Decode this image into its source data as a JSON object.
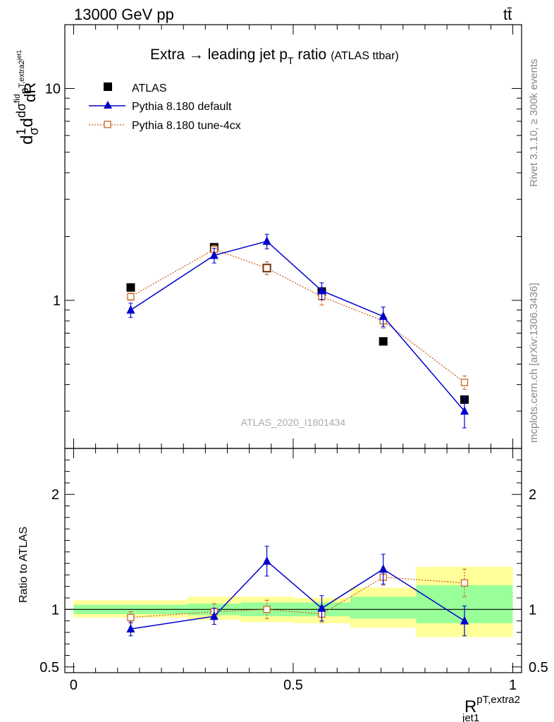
{
  "header": {
    "left": "13000 GeV pp",
    "right": "tt̄"
  },
  "side_labels": {
    "rivet": "Rivet 3.1.10, ≥ 300k events",
    "mcplots": "mcplots.cern.ch [arXiv:1306.3436]"
  },
  "analysis_tag": "ATLAS_2020_I1801434",
  "title": {
    "main": "Extra → leading jet p",
    "sub": "T",
    "tail": " ratio",
    "small": "(ATLAS ttbar)"
  },
  "y_label": {
    "d1": "d",
    "one": "1",
    "sigma": "σ",
    "d2": "d",
    "dsigma": "dσ",
    "fid": "fid",
    "p": "p",
    "textra2": "T,extra2",
    "jet1": "jet1",
    "dR": "dR"
  },
  "ratio_ylabel": "Ratio to ATLAS",
  "x_label": {
    "base": "R",
    "sup": "pT,extra2",
    "sub": "jet1"
  },
  "colors": {
    "atlas": "#000000",
    "pythia_default": "#0000cc",
    "pythia_tune": "#c8641e",
    "band_inner": "#99ff99",
    "band_outer": "#ffff99"
  },
  "chart_data": [
    {
      "type": "scatter",
      "panel": "main",
      "yscale": "log",
      "ylim": [
        0.2,
        20
      ],
      "xlim": [
        -0.02,
        1.02
      ],
      "y_ticks": [
        {
          "v": 1,
          "label": "1"
        },
        {
          "v": 10,
          "label": "10"
        }
      ],
      "legend": [
        "ATLAS",
        "Pythia 8.180 default",
        "Pythia 8.180 tune-4cx"
      ],
      "legend_position": "top-left",
      "series": [
        {
          "name": "ATLAS",
          "marker": "filled-square",
          "x": [
            0.13,
            0.32,
            0.44,
            0.565,
            0.705,
            0.89
          ],
          "y": [
            1.15,
            1.78,
            1.42,
            1.1,
            0.64,
            0.34
          ]
        },
        {
          "name": "Pythia 8.180 default",
          "marker": "filled-triangle",
          "x": [
            0.13,
            0.32,
            0.44,
            0.565,
            0.705,
            0.89
          ],
          "y": [
            0.9,
            1.63,
            1.9,
            1.11,
            0.84,
            0.3
          ],
          "err": [
            0.07,
            0.13,
            0.15,
            0.1,
            0.09,
            0.05
          ]
        },
        {
          "name": "Pythia 8.180 tune-4cx",
          "marker": "open-square",
          "x": [
            0.13,
            0.32,
            0.44,
            0.565,
            0.705,
            0.89
          ],
          "y": [
            1.04,
            1.74,
            1.42,
            1.04,
            0.8,
            0.41
          ],
          "err": [
            0.04,
            0.08,
            0.1,
            0.09,
            0.06,
            0.03
          ]
        }
      ]
    },
    {
      "type": "scatter",
      "panel": "ratio",
      "ylim": [
        0.45,
        2.4
      ],
      "xlim": [
        -0.02,
        1.02
      ],
      "x_ticks": [
        {
          "v": 0,
          "label": "0"
        },
        {
          "v": 0.5,
          "label": "0.5"
        },
        {
          "v": 1,
          "label": "1"
        }
      ],
      "y_ticks": [
        {
          "v": 0.5,
          "label": "0.5"
        },
        {
          "v": 1,
          "label": "1"
        },
        {
          "v": 2,
          "label": "2"
        }
      ],
      "bands": [
        {
          "x0": 0.0,
          "x1": 0.26,
          "inner": [
            0.96,
            1.04
          ],
          "outer": [
            0.93,
            1.08
          ]
        },
        {
          "x0": 0.26,
          "x1": 0.38,
          "inner": [
            0.95,
            1.05
          ],
          "outer": [
            0.91,
            1.11
          ]
        },
        {
          "x0": 0.38,
          "x1": 0.5,
          "inner": [
            0.94,
            1.06
          ],
          "outer": [
            0.89,
            1.11
          ]
        },
        {
          "x0": 0.5,
          "x1": 0.63,
          "inner": [
            0.94,
            1.06
          ],
          "outer": [
            0.88,
            1.1
          ]
        },
        {
          "x0": 0.63,
          "x1": 0.78,
          "inner": [
            0.92,
            1.11
          ],
          "outer": [
            0.84,
            1.19
          ]
        },
        {
          "x0": 0.78,
          "x1": 1.0,
          "inner": [
            0.88,
            1.21
          ],
          "outer": [
            0.76,
            1.37
          ]
        }
      ],
      "series": [
        {
          "name": "Pythia 8.180 default",
          "x": [
            0.13,
            0.32,
            0.44,
            0.565,
            0.705,
            0.89
          ],
          "y": [
            0.83,
            0.94,
            1.42,
            1.01,
            1.35,
            0.9
          ],
          "err": [
            0.06,
            0.07,
            0.13,
            0.11,
            0.13,
            0.13
          ]
        },
        {
          "name": "Pythia 8.180 tune-4cx",
          "x": [
            0.13,
            0.32,
            0.44,
            0.565,
            0.705,
            0.89
          ],
          "y": [
            0.93,
            0.98,
            1.0,
            0.96,
            1.28,
            1.23
          ],
          "err": [
            0.05,
            0.07,
            0.08,
            0.07,
            0.07,
            0.12
          ]
        }
      ]
    }
  ]
}
